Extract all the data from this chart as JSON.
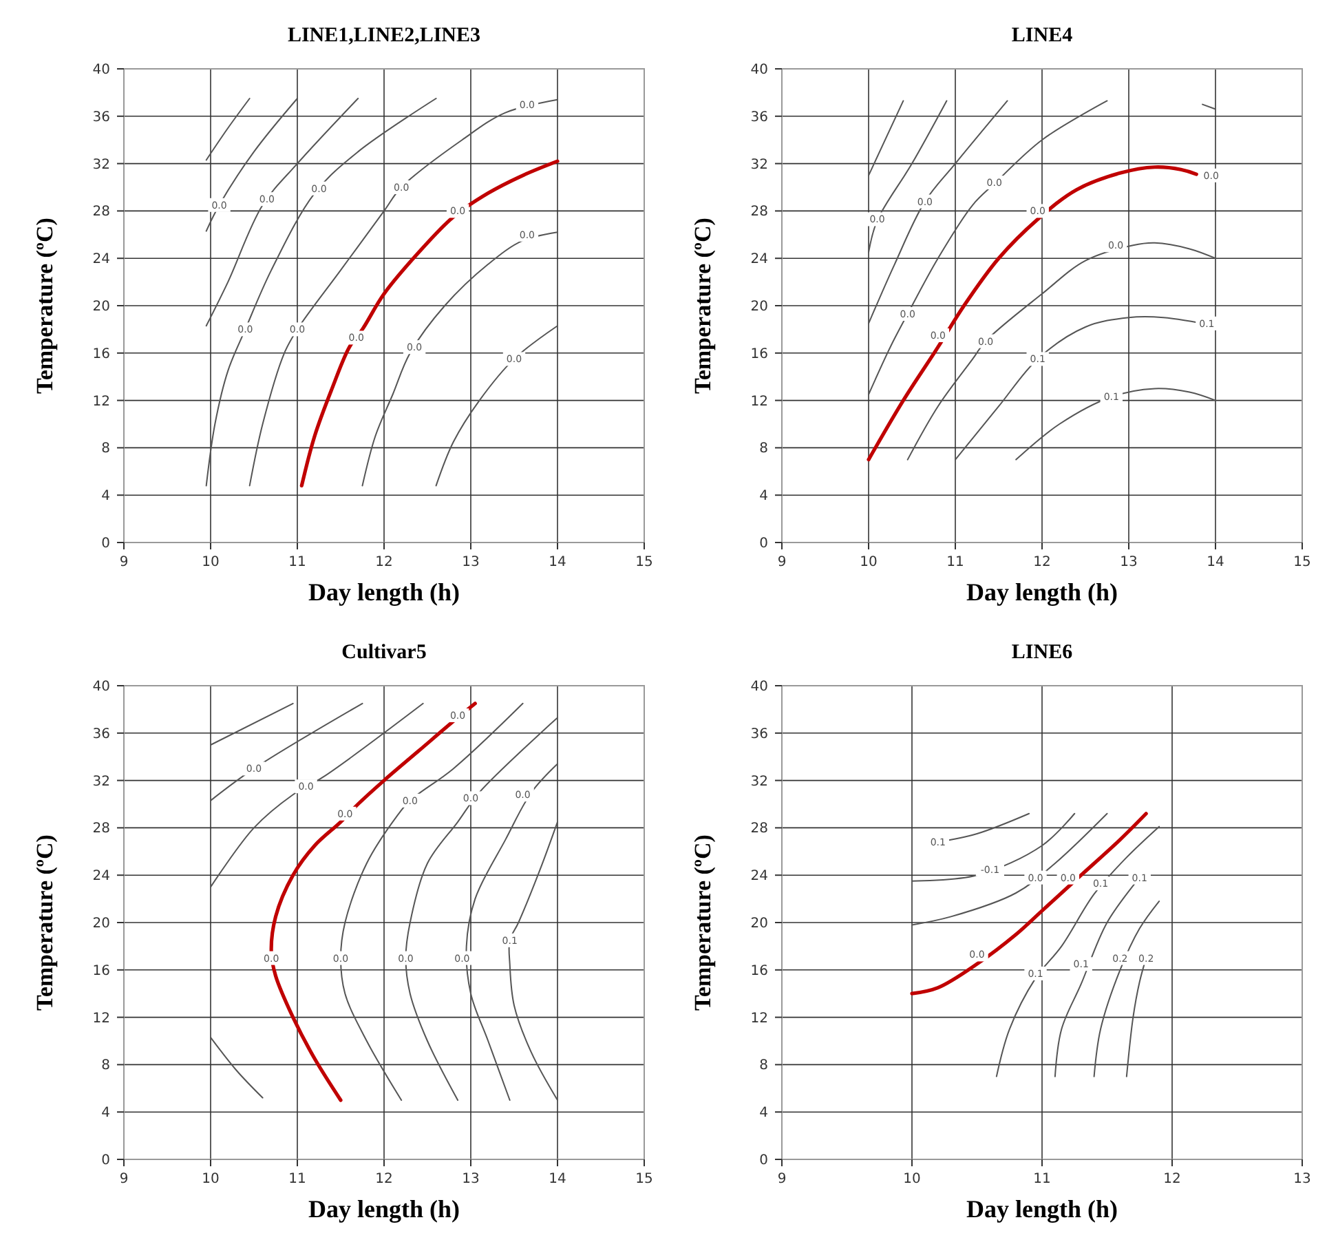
{
  "chart_data": [
    {
      "type": "line",
      "title": "LINE1,LINE2,LINE3",
      "xlabel": "Day length (h)",
      "ylabel": "Temperature  (ºC)",
      "xlim": [
        9,
        15
      ],
      "xticks": [
        9,
        10,
        11,
        12,
        13,
        14,
        15
      ],
      "ylim": [
        0,
        40
      ],
      "yticks": [
        0,
        4,
        8,
        12,
        16,
        20,
        24,
        28,
        32,
        36,
        40
      ],
      "grid": true,
      "marker": "none",
      "series": [
        {
          "color": "#555555",
          "x": [
            9.95,
            10.2,
            10.45
          ],
          "values": [
            32.3,
            35,
            37.5
          ]
        },
        {
          "color": "#555555",
          "x": [
            9.95,
            10.1,
            10.5,
            11.0
          ],
          "values": [
            26.3,
            28.5,
            33,
            37.5
          ]
        },
        {
          "color": "#555555",
          "x": [
            9.95,
            10.2,
            10.6,
            11.0,
            11.7
          ],
          "values": [
            18.3,
            22,
            28.5,
            32,
            37.5
          ]
        },
        {
          "color": "#555555",
          "x": [
            9.95,
            10.05,
            10.2,
            10.4,
            10.7,
            11.2,
            11.7,
            12.6
          ],
          "values": [
            4.8,
            10,
            14.5,
            18,
            23,
            29.5,
            33,
            37.5
          ]
        },
        {
          "color": "#555555",
          "x": [
            10.45,
            10.6,
            10.85,
            11.0,
            11.5,
            12.0,
            12.2,
            12.9,
            13.4,
            14.0
          ],
          "values": [
            4.8,
            10,
            16,
            18,
            23,
            28,
            30,
            34,
            36.3,
            37.4
          ]
        },
        {
          "color": "#c00000",
          "x": [
            11.05,
            11.2,
            11.4,
            11.6,
            11.75,
            12.0,
            12.4,
            12.8,
            13.2,
            13.6,
            14.0
          ],
          "values": [
            4.8,
            9,
            13,
            16.5,
            18,
            21,
            24.5,
            27.5,
            29.5,
            31,
            32.2
          ]
        },
        {
          "color": "#555555",
          "x": [
            11.75,
            11.9,
            12.1,
            12.3,
            12.7,
            13.2,
            13.6,
            14.0
          ],
          "values": [
            4.8,
            9,
            12.5,
            16,
            20,
            23.5,
            25.5,
            26.2
          ]
        },
        {
          "color": "#555555",
          "x": [
            12.6,
            12.8,
            13.1,
            13.5,
            14.0
          ],
          "values": [
            4.8,
            8.5,
            12,
            15.5,
            18.3
          ]
        }
      ],
      "annotations": [
        {
          "text": "0.0",
          "x": 10.1,
          "y": 28.5
        },
        {
          "text": "0.0",
          "x": 10.65,
          "y": 29
        },
        {
          "text": "0.0",
          "x": 11.25,
          "y": 29.9
        },
        {
          "text": "0.0",
          "x": 12.2,
          "y": 30
        },
        {
          "text": "0.0",
          "x": 12.85,
          "y": 28
        },
        {
          "text": "0.0",
          "x": 13.65,
          "y": 37
        },
        {
          "text": "0.0",
          "x": 13.65,
          "y": 26
        },
        {
          "text": "0.0",
          "x": 10.4,
          "y": 18
        },
        {
          "text": "0.0",
          "x": 11.0,
          "y": 18
        },
        {
          "text": "0.0",
          "x": 11.68,
          "y": 17.3
        },
        {
          "text": "0.0",
          "x": 12.35,
          "y": 16.5
        },
        {
          "text": "0.0",
          "x": 13.5,
          "y": 15.5
        }
      ]
    },
    {
      "type": "line",
      "title": "LINE4",
      "xlabel": "Day length (h)",
      "ylabel": "Temperature  (ºC)",
      "xlim": [
        9,
        15
      ],
      "xticks": [
        9,
        10,
        11,
        12,
        13,
        14,
        15
      ],
      "ylim": [
        0,
        40
      ],
      "yticks": [
        0,
        4,
        8,
        12,
        16,
        20,
        24,
        28,
        32,
        36,
        40
      ],
      "grid": true,
      "marker": "none",
      "series": [
        {
          "color": "#555555",
          "x": [
            10.0,
            10.4
          ],
          "values": [
            31,
            37.3
          ]
        },
        {
          "color": "#555555",
          "x": [
            10.0,
            10.1,
            10.5,
            10.9
          ],
          "values": [
            24.5,
            27.2,
            32,
            37.3
          ]
        },
        {
          "color": "#555555",
          "x": [
            10.0,
            10.3,
            10.65,
            11.0,
            11.6
          ],
          "values": [
            18.5,
            23.5,
            28.8,
            32,
            37.3
          ]
        },
        {
          "color": "#555555",
          "x": [
            10.0,
            10.25,
            10.45,
            10.8,
            11.2,
            11.45,
            12.0,
            12.75
          ],
          "values": [
            12.5,
            16.5,
            19.3,
            24,
            28.5,
            30.3,
            34,
            37.3
          ]
        },
        {
          "color": "#c00000",
          "x": [
            10.0,
            10.4,
            10.8,
            11.1,
            11.5,
            11.95,
            12.4,
            12.9,
            13.3,
            13.6,
            13.78
          ],
          "values": [
            7,
            12,
            16.5,
            20,
            24,
            27.3,
            29.8,
            31.2,
            31.7,
            31.5,
            31.1
          ]
        },
        {
          "color": "#555555",
          "x": [
            10.45,
            10.8,
            11.2,
            11.35,
            12.0,
            12.5,
            13.05,
            13.3,
            13.7,
            14.0
          ],
          "values": [
            7,
            11.5,
            15.5,
            17,
            21,
            23.8,
            25.1,
            25.3,
            24.8,
            24
          ]
        },
        {
          "color": "#555555",
          "x": [
            11.0,
            11.5,
            11.95,
            12.5,
            13.0,
            13.4,
            14.0
          ],
          "values": [
            7,
            11.5,
            15.5,
            18.2,
            19,
            19,
            18.3
          ]
        },
        {
          "color": "#555555",
          "x": [
            11.7,
            12.2,
            12.8,
            13.3,
            13.7,
            14.0
          ],
          "values": [
            7,
            10,
            12.3,
            13,
            12.7,
            12
          ]
        },
        {
          "color": "#555555",
          "x": [
            13.85,
            14.0
          ],
          "values": [
            37,
            36.6
          ]
        }
      ],
      "annotations": [
        {
          "text": "0.0",
          "x": 10.1,
          "y": 27.3
        },
        {
          "text": "0.0",
          "x": 10.65,
          "y": 28.8
        },
        {
          "text": "0.0",
          "x": 11.45,
          "y": 30.4
        },
        {
          "text": "0.0",
          "x": 10.45,
          "y": 19.3
        },
        {
          "text": "0.0",
          "x": 10.8,
          "y": 17.5
        },
        {
          "text": "0.0",
          "x": 11.35,
          "y": 17
        },
        {
          "text": "0.0",
          "x": 11.95,
          "y": 28
        },
        {
          "text": "0.0",
          "x": 12.85,
          "y": 25.1
        },
        {
          "text": "0.0",
          "x": 13.95,
          "y": 31
        },
        {
          "text": "0.1",
          "x": 11.95,
          "y": 15.5
        },
        {
          "text": "0.1",
          "x": 12.8,
          "y": 12.3
        },
        {
          "text": "0.1",
          "x": 13.9,
          "y": 18.5
        }
      ]
    },
    {
      "type": "line",
      "title": "Cultivar5",
      "xlabel": "Day length (h)",
      "ylabel": "Temperature  (ºC)",
      "xlim": [
        9,
        15
      ],
      "xticks": [
        9,
        10,
        11,
        12,
        13,
        14,
        15
      ],
      "ylim": [
        0,
        40
      ],
      "yticks": [
        0,
        4,
        8,
        12,
        16,
        20,
        24,
        28,
        32,
        36,
        40
      ],
      "grid": true,
      "marker": "none",
      "series": [
        {
          "color": "#555555",
          "x": [
            10.0,
            10.95
          ],
          "values": [
            35,
            38.5
          ]
        },
        {
          "color": "#555555",
          "x": [
            10.0,
            10.5,
            11.75
          ],
          "values": [
            30.3,
            33,
            38.5
          ]
        },
        {
          "color": "#555555",
          "x": [
            10.0,
            10.5,
            10.95,
            11.3,
            12.45
          ],
          "values": [
            23,
            28,
            30.8,
            32.3,
            38.5
          ]
        },
        {
          "color": "#c00000",
          "x": [
            11.5,
            11.2,
            10.95,
            10.75,
            10.7,
            10.75,
            10.95,
            11.2,
            11.5,
            11.7,
            12.0,
            12.4,
            12.8,
            13.05
          ],
          "values": [
            5,
            8.5,
            12,
            15.5,
            17.5,
            20.5,
            24,
            26.5,
            28.5,
            30,
            32,
            34.5,
            37,
            38.5
          ]
        },
        {
          "color": "#555555",
          "x": [
            12.2,
            11.8,
            11.55,
            11.5,
            11.55,
            11.8,
            12.15,
            12.3,
            12.8,
            13.6
          ],
          "values": [
            5,
            10,
            14,
            17,
            20,
            25,
            29,
            30.3,
            33,
            38.5
          ]
        },
        {
          "color": "#555555",
          "x": [
            12.85,
            12.5,
            12.3,
            12.25,
            12.3,
            12.5,
            12.85,
            13.1,
            14.0
          ],
          "values": [
            5,
            10,
            14,
            17,
            20,
            25,
            28.5,
            31,
            37.3
          ]
        },
        {
          "color": "#555555",
          "x": [
            13.45,
            13.2,
            13.0,
            12.95,
            13.05,
            13.4,
            13.7,
            14.0
          ],
          "values": [
            5,
            10,
            14,
            18,
            22,
            27,
            31,
            33.4
          ]
        },
        {
          "color": "#555555",
          "x": [
            14.0,
            13.7,
            13.5,
            13.45,
            13.45,
            13.55,
            13.8,
            14.0
          ],
          "values": [
            5,
            9,
            13,
            16.5,
            18.5,
            20,
            24.5,
            28.5
          ]
        },
        {
          "color": "#555555",
          "x": [
            10.0,
            10.3,
            10.6
          ],
          "values": [
            10.3,
            7.5,
            5.2
          ]
        }
      ],
      "annotations": [
        {
          "text": "0.0",
          "x": 10.5,
          "y": 33
        },
        {
          "text": "0.0",
          "x": 11.1,
          "y": 31.5
        },
        {
          "text": "0.0",
          "x": 11.55,
          "y": 29.2
        },
        {
          "text": "0.0",
          "x": 12.3,
          "y": 30.3
        },
        {
          "text": "0.0",
          "x": 13.0,
          "y": 30.5
        },
        {
          "text": "0.0",
          "x": 13.6,
          "y": 30.8
        },
        {
          "text": "0.0",
          "x": 12.85,
          "y": 37.5
        },
        {
          "text": "0.0",
          "x": 10.7,
          "y": 17
        },
        {
          "text": "0.0",
          "x": 11.5,
          "y": 17
        },
        {
          "text": "0.0",
          "x": 12.25,
          "y": 17
        },
        {
          "text": "0.0",
          "x": 12.9,
          "y": 17
        },
        {
          "text": "0.1",
          "x": 13.45,
          "y": 18.5
        }
      ]
    },
    {
      "type": "line",
      "title": "LINE6",
      "xlabel": "Day length (h)",
      "ylabel": "Temperature  (ºC)",
      "xlim": [
        9,
        13
      ],
      "xticks": [
        9,
        10,
        11,
        12,
        13
      ],
      "ylim": [
        0,
        40
      ],
      "yticks": [
        0,
        4,
        8,
        12,
        16,
        20,
        24,
        28,
        32,
        36,
        40
      ],
      "grid": true,
      "marker": "none",
      "series": [
        {
          "color": "#c00000",
          "x": [
            10.0,
            10.2,
            10.5,
            10.8,
            11.0,
            11.3,
            11.6,
            11.8
          ],
          "values": [
            14,
            14.5,
            16.5,
            19,
            21,
            24,
            27,
            29.2
          ]
        },
        {
          "color": "#555555",
          "x": [
            10.2,
            10.5,
            10.9
          ],
          "values": [
            26.8,
            27.5,
            29.2
          ]
        },
        {
          "color": "#555555",
          "x": [
            10.0,
            10.5,
            11.0,
            11.25
          ],
          "values": [
            23.5,
            24,
            26.5,
            29.2
          ]
        },
        {
          "color": "#555555",
          "x": [
            10.0,
            10.3,
            10.8,
            11.1,
            11.5
          ],
          "values": [
            19.8,
            20.5,
            22.5,
            25,
            29.2
          ]
        },
        {
          "color": "#555555",
          "x": [
            10.65,
            10.75,
            10.95,
            11.15,
            11.4,
            11.65,
            11.9
          ],
          "values": [
            7,
            11,
            15.3,
            18,
            22.4,
            25.5,
            28.1
          ]
        },
        {
          "color": "#555555",
          "x": [
            11.1,
            11.15,
            11.3,
            11.5,
            11.75
          ],
          "values": [
            7,
            11,
            14.8,
            20,
            23.8
          ]
        },
        {
          "color": "#555555",
          "x": [
            11.4,
            11.45,
            11.6,
            11.75,
            11.9
          ],
          "values": [
            7,
            11,
            16,
            19.5,
            21.8
          ]
        },
        {
          "color": "#555555",
          "x": [
            11.65,
            11.7,
            11.75,
            11.8
          ],
          "values": [
            7,
            12,
            15,
            17
          ]
        }
      ],
      "annotations": [
        {
          "text": "0.1",
          "x": 10.2,
          "y": 26.8
        },
        {
          "text": "-0.1",
          "x": 10.6,
          "y": 24.5
        },
        {
          "text": "0.0",
          "x": 10.95,
          "y": 23.8
        },
        {
          "text": "0.0",
          "x": 11.2,
          "y": 23.8
        },
        {
          "text": "0.0",
          "x": 10.5,
          "y": 17.3
        },
        {
          "text": "0.1",
          "x": 10.95,
          "y": 15.7
        },
        {
          "text": "0.1",
          "x": 11.45,
          "y": 23.3
        },
        {
          "text": "0.1",
          "x": 11.75,
          "y": 23.8
        },
        {
          "text": "0.1",
          "x": 11.3,
          "y": 16.5
        },
        {
          "text": "0.2",
          "x": 11.6,
          "y": 17
        },
        {
          "text": "0.2",
          "x": 11.8,
          "y": 17
        }
      ]
    }
  ]
}
